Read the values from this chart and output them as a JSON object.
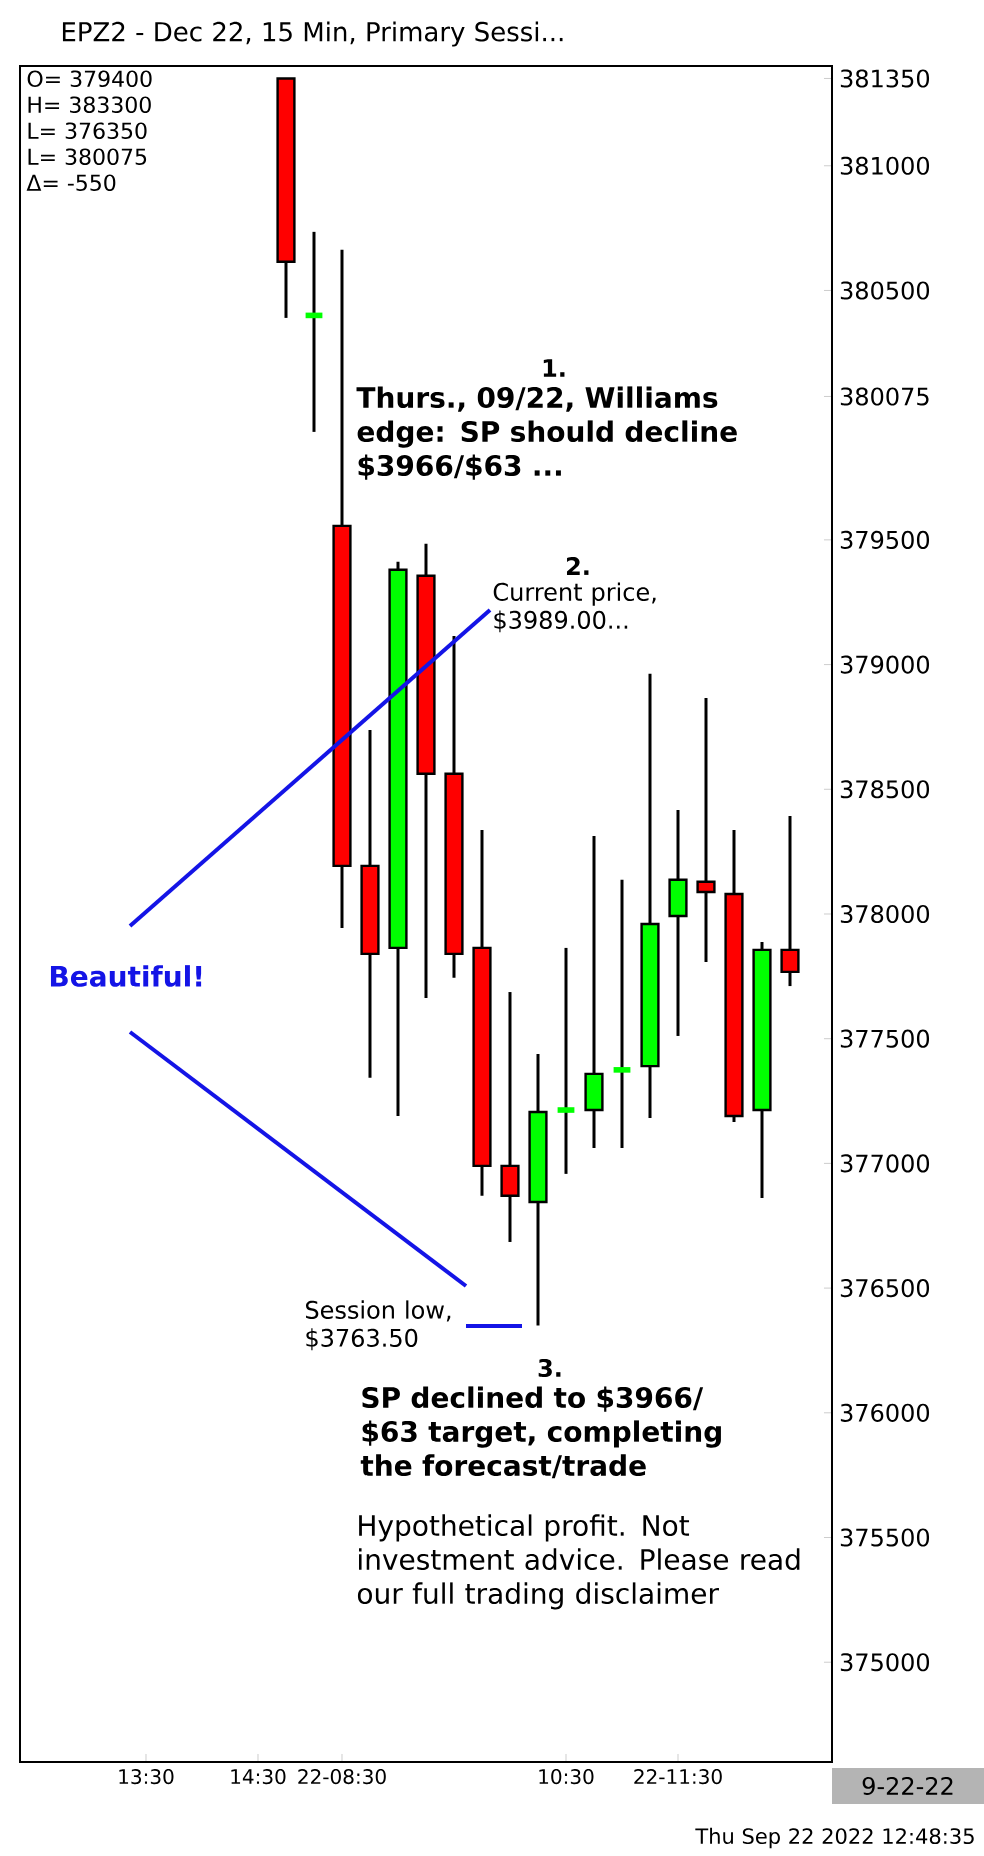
{
  "chart_data": {
    "type": "candlestick",
    "title": "EPZ2 - Dec 22, 15 Min, Primary Sessi...",
    "categories": [
      null,
      null,
      null,
      "13:30",
      null,
      null,
      null,
      "14:30",
      null,
      null,
      "22-08:30",
      null,
      null,
      null,
      null,
      null,
      null,
      null,
      "10:30",
      null,
      null,
      null,
      "22-11:30",
      null,
      null,
      null,
      null
    ],
    "ohlc": [
      null,
      null,
      null,
      null,
      null,
      null,
      null,
      null,
      [
        381350,
        381350,
        380390,
        380615
      ],
      [
        380400,
        380735,
        379933,
        380400
      ],
      [
        379556,
        380663,
        377944,
        378193
      ],
      [
        378193,
        378738,
        377343,
        377840
      ],
      [
        377864,
        379412,
        377190,
        379380
      ],
      [
        379356,
        379484,
        377663,
        378562
      ],
      [
        378562,
        379115,
        377744,
        377840
      ],
      [
        377864,
        378337,
        376870,
        376990
      ],
      [
        376990,
        377687,
        376685,
        376870
      ],
      [
        376845,
        377439,
        376350,
        377206
      ],
      [
        377214,
        377864,
        376958,
        377214
      ],
      [
        377214,
        378313,
        377062,
        377359
      ],
      [
        377375,
        378137,
        377062,
        377375
      ],
      [
        377390,
        378963,
        377182,
        377960
      ],
      [
        377992,
        378417,
        377511,
        378137
      ],
      [
        378129,
        378866,
        377808,
        378088
      ],
      [
        378080,
        378337,
        377166,
        377190
      ],
      [
        377214,
        377888,
        376861,
        377856
      ],
      [
        377856,
        378393,
        377711,
        377768
      ]
    ],
    "colors": [
      null,
      null,
      null,
      null,
      null,
      null,
      null,
      null,
      "#ff0000",
      "#00ff00",
      "#ff0000",
      "#ff0000",
      "#00ff00",
      "#ff0000",
      "#ff0000",
      "#ff0000",
      "#ff0000",
      "#00ff00",
      "#00ff00",
      "#00ff00",
      "#00ff00",
      "#00ff00",
      "#00ff00",
      "#ff0000",
      "#ff0000",
      "#00ff00",
      "#ff0000"
    ],
    "ylim": [
      374600,
      381400
    ],
    "yticks": [
      375000,
      375500,
      376000,
      376500,
      377000,
      377500,
      378000,
      378500,
      379000,
      379500,
      {
        "value": 380075,
        "label": "380075"
      },
      380500,
      381000,
      {
        "value": 381350,
        "label": "381350"
      }
    ],
    "annotations": [
      "1.",
      "Thurs., 09/22, Williams edge: SP should decline $3966/$63 ...",
      "2.",
      "Current price, $3989.00...",
      "Beautiful!",
      "Session low, $3763.50",
      "3.",
      "SP declined to $3966/ $63 target, completing the forecast/trade",
      "Hypothetical profit. Not investment advice. Please read our full trading disclaimer",
      "O=  379400",
      "H=  383300",
      "L=  376350",
      "L=  380075",
      "Δ=      -550",
      "Thu Sep 22 2022 12:48:35",
      "9-22-22"
    ]
  }
}
